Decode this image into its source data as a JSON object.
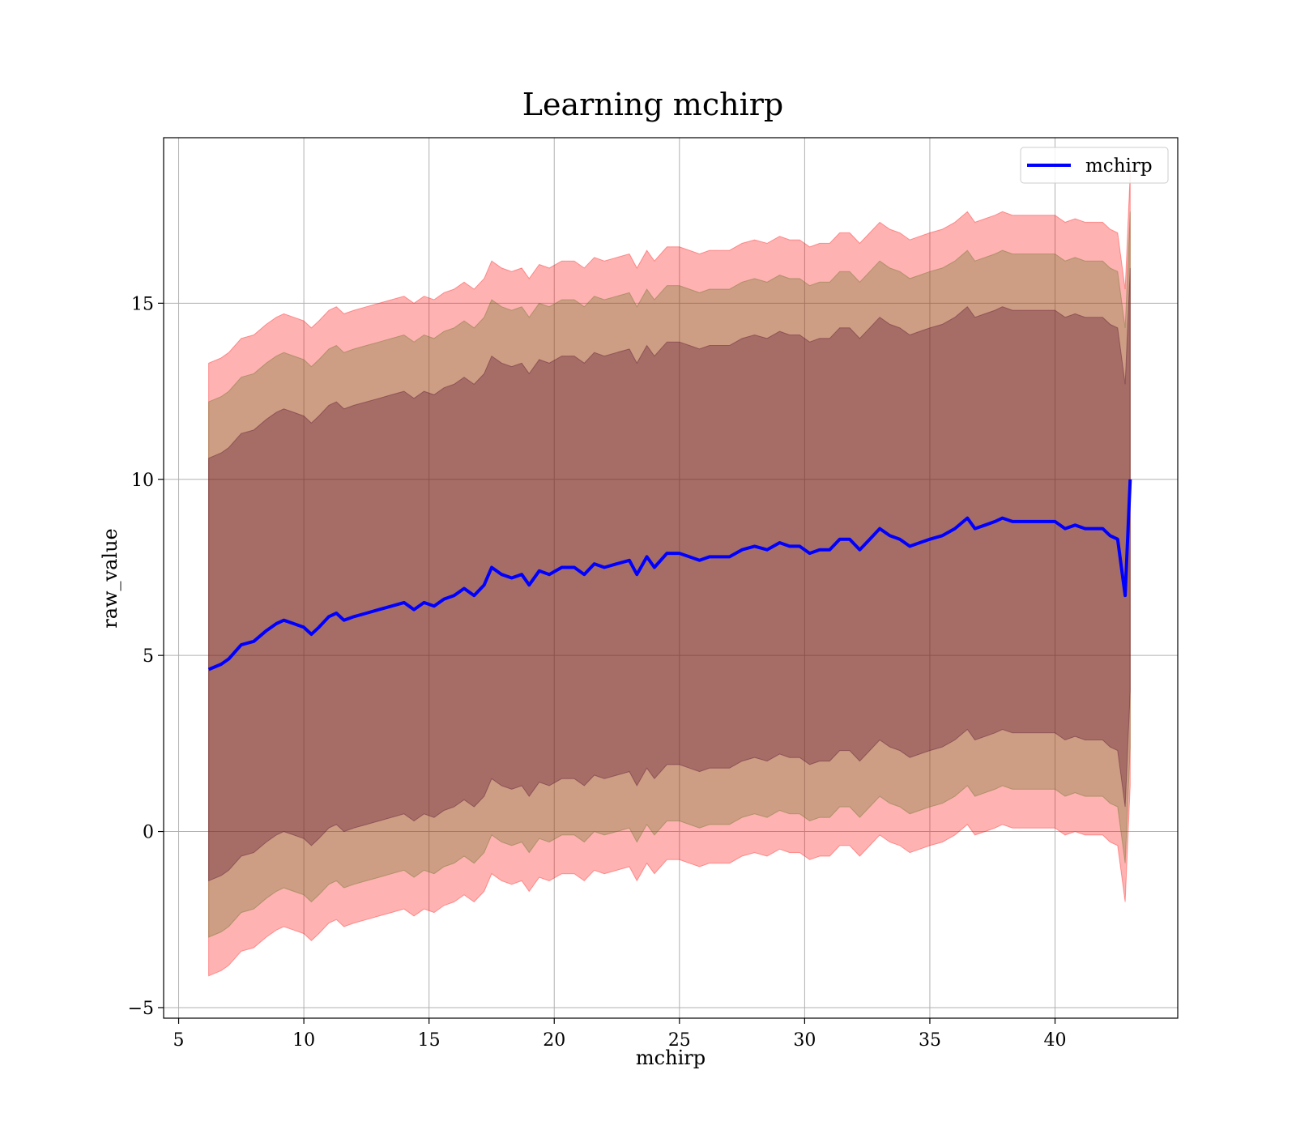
{
  "chart_data": {
    "type": "line",
    "title": "Learning mchirp",
    "xlabel": "mchirp",
    "ylabel": "raw_value",
    "xlim": [
      4.4,
      44.9
    ],
    "ylim": [
      -5.3,
      19.7
    ],
    "x_ticks": [
      5,
      10,
      15,
      20,
      25,
      30,
      35,
      40
    ],
    "x_tick_labels": [
      "5",
      "10",
      "15",
      "20",
      "25",
      "30",
      "35",
      "40"
    ],
    "y_ticks": [
      -5,
      0,
      5,
      10,
      15
    ],
    "y_tick_labels": [
      "−5",
      "0",
      "5",
      "10",
      "15"
    ],
    "grid": true,
    "legend": {
      "position": "top-right",
      "entries": [
        "mchirp"
      ]
    },
    "colors": {
      "line": "#0000ff",
      "band": "#ff0000",
      "band_inner": "#4b0026",
      "band_mid": "#5a6e1a"
    },
    "band_half_widths": [
      6.0,
      7.6,
      8.7
    ],
    "band_opacities": [
      0.3,
      0.3,
      0.3
    ],
    "series": [
      {
        "name": "mchirp",
        "x": [
          6.2,
          6.7,
          7.0,
          7.5,
          8.0,
          8.5,
          8.9,
          9.2,
          9.6,
          10.0,
          10.3,
          10.6,
          11.0,
          11.3,
          11.6,
          12.0,
          12.5,
          13.0,
          13.5,
          14.0,
          14.4,
          14.8,
          15.2,
          15.6,
          16.0,
          16.4,
          16.8,
          17.2,
          17.5,
          17.9,
          18.3,
          18.7,
          19.0,
          19.4,
          19.8,
          20.3,
          20.8,
          21.2,
          21.6,
          22.0,
          22.5,
          23.0,
          23.3,
          23.7,
          24.0,
          24.5,
          25.0,
          25.4,
          25.8,
          26.2,
          26.6,
          27.0,
          27.5,
          28.0,
          28.5,
          29.0,
          29.4,
          29.8,
          30.2,
          30.6,
          31.0,
          31.4,
          31.8,
          32.2,
          32.6,
          33.0,
          33.4,
          33.8,
          34.2,
          34.6,
          35.0,
          35.5,
          36.0,
          36.5,
          36.8,
          37.2,
          37.6,
          37.9,
          38.3,
          38.8,
          39.2,
          39.6,
          40.0,
          40.4,
          40.8,
          41.2,
          41.6,
          41.9,
          42.2,
          42.5,
          42.8,
          43.0
        ],
        "y": [
          4.6,
          4.75,
          4.9,
          5.3,
          5.4,
          5.7,
          5.9,
          6.0,
          5.9,
          5.8,
          5.6,
          5.8,
          6.1,
          6.2,
          6.0,
          6.1,
          6.2,
          6.3,
          6.4,
          6.5,
          6.3,
          6.5,
          6.4,
          6.6,
          6.7,
          6.9,
          6.7,
          7.0,
          7.5,
          7.3,
          7.2,
          7.3,
          7.0,
          7.4,
          7.3,
          7.5,
          7.5,
          7.3,
          7.6,
          7.5,
          7.6,
          7.7,
          7.3,
          7.8,
          7.5,
          7.9,
          7.9,
          7.8,
          7.7,
          7.8,
          7.8,
          7.8,
          8.0,
          8.1,
          8.0,
          8.2,
          8.1,
          8.1,
          7.9,
          8.0,
          8.0,
          8.3,
          8.3,
          8.0,
          8.3,
          8.6,
          8.4,
          8.3,
          8.1,
          8.2,
          8.3,
          8.4,
          8.6,
          8.9,
          8.6,
          8.7,
          8.8,
          8.9,
          8.8,
          8.8,
          8.8,
          8.8,
          8.8,
          8.6,
          8.7,
          8.6,
          8.6,
          8.6,
          8.4,
          8.3,
          6.7,
          10.0
        ]
      }
    ]
  },
  "legend": {
    "label": "mchirp"
  }
}
